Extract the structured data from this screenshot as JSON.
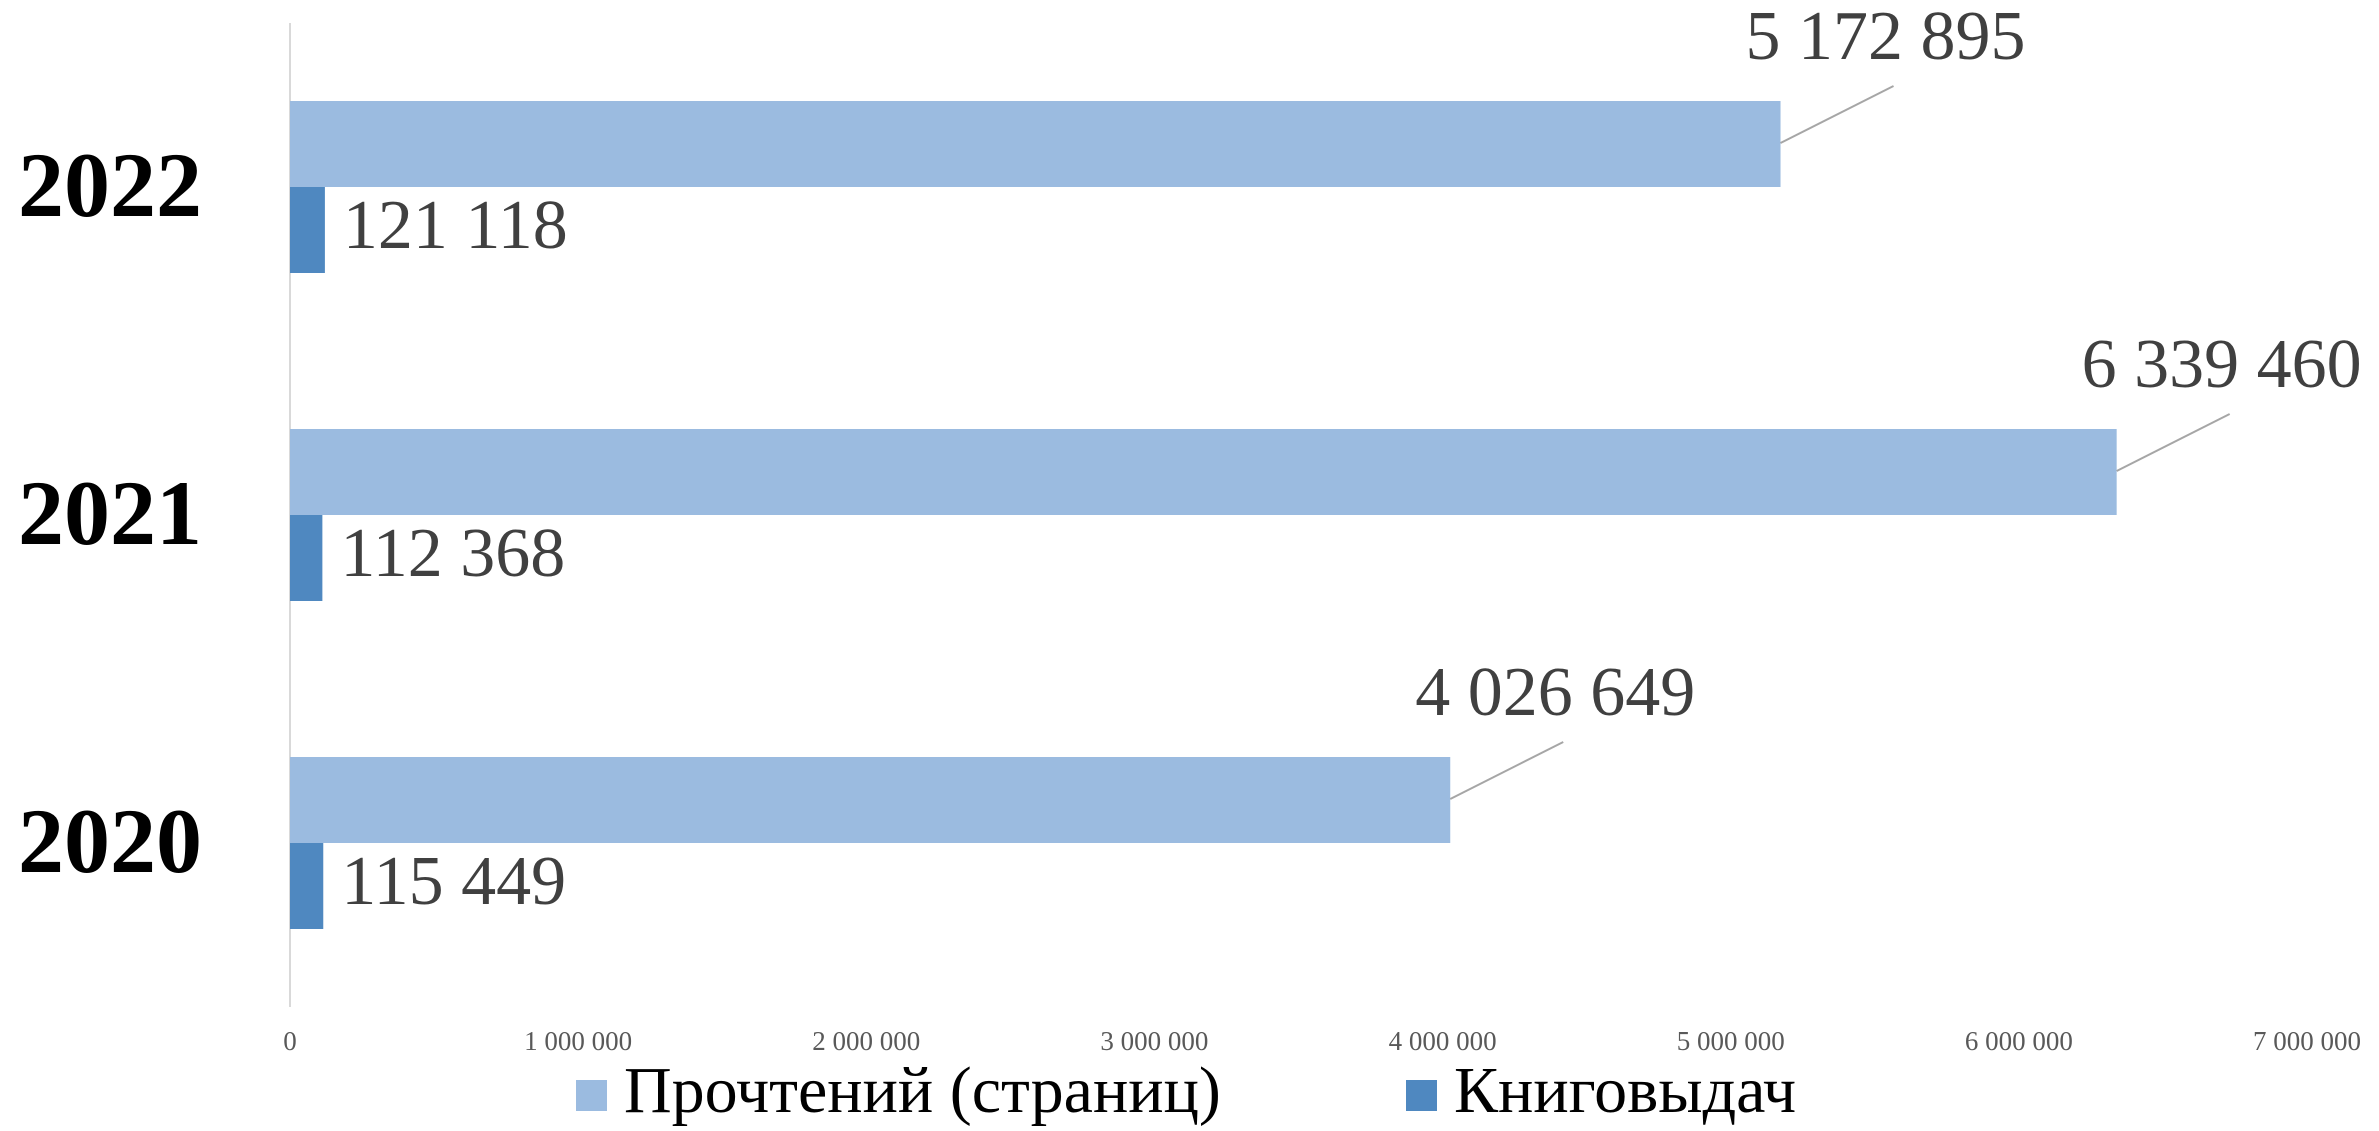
{
  "chart_data": {
    "type": "barh",
    "categories": [
      "2022",
      "2021",
      "2020"
    ],
    "series": [
      {
        "name": "Прочтений (страниц)",
        "color": "#9bbbe0",
        "values": [
          5172895,
          6339460,
          4026649
        ],
        "value_labels": [
          "5 172 895",
          "6 339 460",
          "4 026 649"
        ]
      },
      {
        "name": "Книговыдач",
        "color": "#4f88c0",
        "values": [
          121118,
          112368,
          115449
        ],
        "value_labels": [
          "121 118",
          "112 368",
          "115 449"
        ]
      }
    ],
    "xlim": [
      0,
      7000000
    ],
    "xticks": [
      0,
      {
        "value": 1000000,
        "label": "1 000 000"
      },
      {
        "value": 2000000,
        "label": "2 000 000"
      },
      {
        "value": 3000000,
        "label": "3 000 000"
      },
      {
        "value": 4000000,
        "label": "4 000 000"
      },
      {
        "value": 5000000,
        "label": "5 000 000"
      },
      {
        "value": 6000000,
        "label": "6 000 000"
      },
      {
        "value": 7000000,
        "label": "7 000 000"
      }
    ],
    "legend": "bottom"
  }
}
